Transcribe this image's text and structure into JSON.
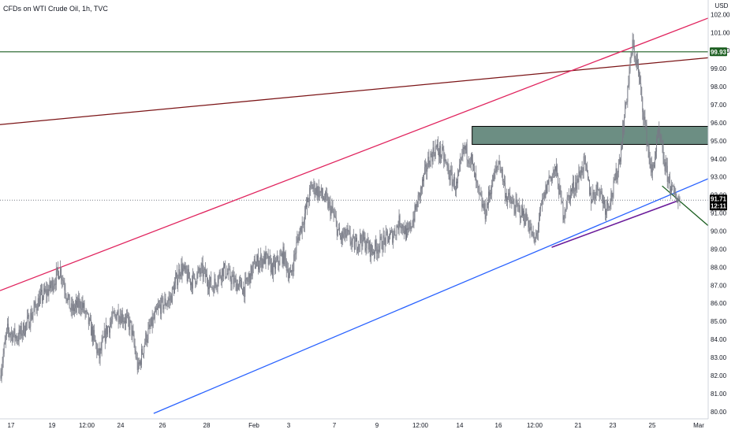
{
  "header": {
    "title": "CFDs on WTI Crude Oil, 1h, TVC",
    "currency": "USD"
  },
  "colors": {
    "candle": "#787b86",
    "green_line": "#1b5e20",
    "dark_red_line": "#7b1416",
    "pink_line": "#e0245e",
    "blue_line": "#2962ff",
    "purple_line": "#6a1b9a",
    "zone_fill": "#2e5e4e",
    "price_badge": "#000000",
    "level_badge": "#1b5e20"
  },
  "chart_data": {
    "type": "candlestick",
    "title": "CFDs on WTI Crude Oil, 1h, TVC",
    "ylim": [
      79.6,
      102.8
    ],
    "y_ticks": [
      "80.00",
      "81.00",
      "82.00",
      "83.00",
      "84.00",
      "85.00",
      "86.00",
      "87.00",
      "88.00",
      "89.00",
      "90.00",
      "91.00",
      "92.00",
      "93.00",
      "94.00",
      "95.00",
      "96.00",
      "97.00",
      "98.00",
      "99.00",
      "100.00",
      "101.00",
      "102.00"
    ],
    "x_ticks": [
      "17",
      "19",
      "12:00",
      "24",
      "26",
      "28",
      "Feb",
      "3",
      "7",
      "9",
      "12:00",
      "14",
      "16",
      "12:00",
      "21",
      "23",
      "25",
      "Mar"
    ],
    "price_path": [
      [
        0,
        82.0
      ],
      [
        0.01,
        84.5
      ],
      [
        0.025,
        84.1
      ],
      [
        0.04,
        85.0
      ],
      [
        0.055,
        86.2
      ],
      [
        0.07,
        86.8
      ],
      [
        0.085,
        87.9
      ],
      [
        0.1,
        85.6
      ],
      [
        0.115,
        86.0
      ],
      [
        0.13,
        84.4
      ],
      [
        0.14,
        83.0
      ],
      [
        0.15,
        84.5
      ],
      [
        0.165,
        85.5
      ],
      [
        0.175,
        85.2
      ],
      [
        0.185,
        84.7
      ],
      [
        0.195,
        82.3
      ],
      [
        0.205,
        84.0
      ],
      [
        0.215,
        84.9
      ],
      [
        0.225,
        85.8
      ],
      [
        0.24,
        86.2
      ],
      [
        0.255,
        88.0
      ],
      [
        0.27,
        87.2
      ],
      [
        0.285,
        87.8
      ],
      [
        0.3,
        86.9
      ],
      [
        0.315,
        87.9
      ],
      [
        0.33,
        87.2
      ],
      [
        0.345,
        86.8
      ],
      [
        0.36,
        88.2
      ],
      [
        0.375,
        88.5
      ],
      [
        0.385,
        87.9
      ],
      [
        0.4,
        88.7
      ],
      [
        0.41,
        87.4
      ],
      [
        0.42,
        89.5
      ],
      [
        0.43,
        90.9
      ],
      [
        0.44,
        92.5
      ],
      [
        0.45,
        92.2
      ],
      [
        0.46,
        91.7
      ],
      [
        0.47,
        91.0
      ],
      [
        0.48,
        89.6
      ],
      [
        0.49,
        89.8
      ],
      [
        0.5,
        89.2
      ],
      [
        0.51,
        89.6
      ],
      [
        0.525,
        88.9
      ],
      [
        0.54,
        89.4
      ],
      [
        0.555,
        89.8
      ],
      [
        0.565,
        90.6
      ],
      [
        0.575,
        89.7
      ],
      [
        0.585,
        90.9
      ],
      [
        0.595,
        92.4
      ],
      [
        0.605,
        93.9
      ],
      [
        0.615,
        94.6
      ],
      [
        0.625,
        94.2
      ],
      [
        0.635,
        93.1
      ],
      [
        0.645,
        92.4
      ],
      [
        0.655,
        94.6
      ],
      [
        0.665,
        94.0
      ],
      [
        0.675,
        92.1
      ],
      [
        0.685,
        91.0
      ],
      [
        0.695,
        92.7
      ],
      [
        0.705,
        93.9
      ],
      [
        0.715,
        91.9
      ],
      [
        0.725,
        91.4
      ],
      [
        0.735,
        91.1
      ],
      [
        0.745,
        90.6
      ],
      [
        0.755,
        89.3
      ],
      [
        0.765,
        91.4
      ],
      [
        0.775,
        92.9
      ],
      [
        0.785,
        93.4
      ],
      [
        0.795,
        91.0
      ],
      [
        0.805,
        92.1
      ],
      [
        0.815,
        92.8
      ],
      [
        0.825,
        93.8
      ],
      [
        0.835,
        91.8
      ],
      [
        0.845,
        92.5
      ],
      [
        0.855,
        91.3
      ],
      [
        0.865,
        92.1
      ],
      [
        0.875,
        94.0
      ],
      [
        0.885,
        97.5
      ],
      [
        0.893,
        100.3
      ],
      [
        0.9,
        99.2
      ],
      [
        0.91,
        96.1
      ],
      [
        0.92,
        93.1
      ],
      [
        0.93,
        95.4
      ],
      [
        0.94,
        93.4
      ],
      [
        0.95,
        92.1
      ],
      [
        0.96,
        91.71
      ]
    ],
    "price_line": {
      "value": 91.71,
      "label": "91.71",
      "countdown": "12:11"
    },
    "horizontal_level": {
      "value": 99.93,
      "label": "99.93"
    },
    "resistance_zone": {
      "from": 94.8,
      "to": 95.8,
      "x_start": 0.66,
      "x_end": 1.0
    },
    "trendlines": [
      {
        "name": "dark-red",
        "x": [
          0,
          1
        ],
        "y": [
          95.9,
          99.6
        ]
      },
      {
        "name": "pink",
        "x": [
          0,
          1
        ],
        "y": [
          86.7,
          101.8
        ]
      },
      {
        "name": "blue",
        "x": [
          0.217,
          1
        ],
        "y": [
          79.9,
          92.9
        ]
      },
      {
        "name": "purple",
        "x": [
          0.779,
          0.96
        ],
        "y": [
          89.1,
          91.72
        ]
      },
      {
        "name": "green-short",
        "x": [
          0.935,
          1
        ],
        "y": [
          92.5,
          90.3
        ]
      }
    ]
  }
}
